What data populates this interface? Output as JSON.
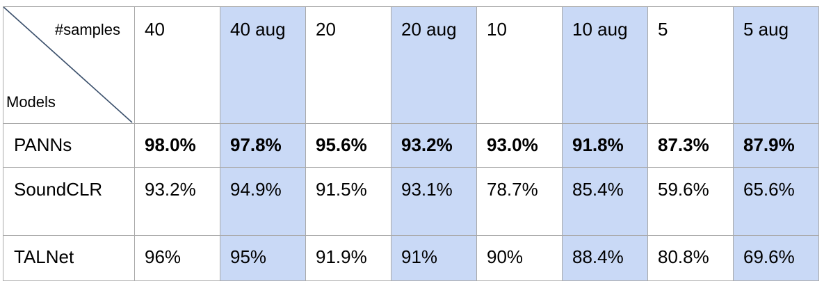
{
  "table": {
    "corner": {
      "top_label": "#samples",
      "bottom_label": "Models"
    },
    "columns": [
      {
        "label": "40",
        "augmented": false
      },
      {
        "label": "40 aug",
        "augmented": true
      },
      {
        "label": "20",
        "augmented": false
      },
      {
        "label": "20 aug",
        "augmented": true
      },
      {
        "label": "10",
        "augmented": false
      },
      {
        "label": "10 aug",
        "augmented": true
      },
      {
        "label": "5",
        "augmented": false
      },
      {
        "label": "5 aug",
        "augmented": true
      }
    ],
    "rows": [
      {
        "model": "PANNs",
        "values": [
          "98.0%",
          "97.8%",
          "95.6%",
          "93.2%",
          "93.0%",
          "91.8%",
          "87.3%",
          "87.9%"
        ]
      },
      {
        "model": "SoundCLR",
        "values": [
          "93.2%",
          "94.9%",
          "91.5%",
          "93.1%",
          "78.7%",
          "85.4%",
          "59.6%",
          "65.6%"
        ]
      },
      {
        "model": "TALNet",
        "values": [
          "96%",
          "95%",
          "91.9%",
          "91%",
          "90%",
          "88.4%",
          "80.8%",
          "69.6%"
        ]
      }
    ],
    "colors": {
      "augmented_column_fill": "#c9d9f6",
      "border": "#a9a9a9",
      "diagonal_line": "#3a4f6b"
    }
  }
}
